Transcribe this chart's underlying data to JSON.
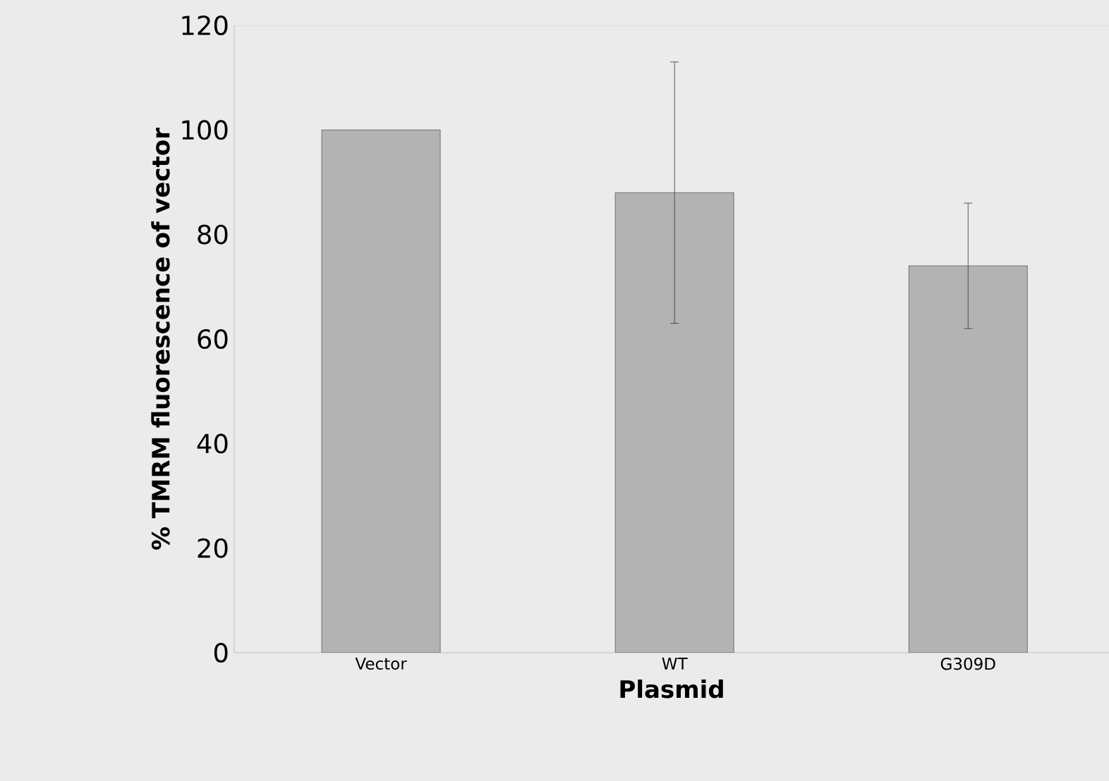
{
  "chart_data": {
    "type": "bar",
    "categories": [
      "Vector",
      "WT",
      "G309D"
    ],
    "values": [
      100,
      88,
      74
    ],
    "errors": [
      null,
      25,
      12
    ],
    "color": "#b3b3b3",
    "xlabel": "Plasmid",
    "ylabel": "% TMRM fluorescence of vector",
    "ylim": [
      0,
      120
    ],
    "yticks": [
      0,
      20,
      40,
      60,
      80,
      100,
      120
    ]
  }
}
